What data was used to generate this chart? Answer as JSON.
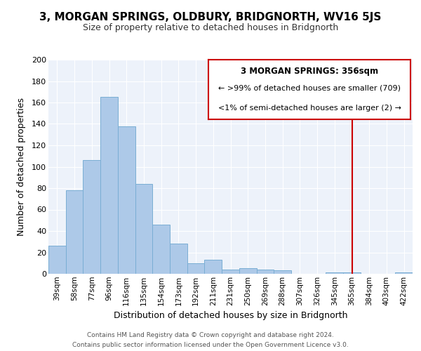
{
  "title": "3, MORGAN SPRINGS, OLDBURY, BRIDGNORTH, WV16 5JS",
  "subtitle": "Size of property relative to detached houses in Bridgnorth",
  "xlabel": "Distribution of detached houses by size in Bridgnorth",
  "ylabel": "Number of detached properties",
  "bar_labels": [
    "39sqm",
    "58sqm",
    "77sqm",
    "96sqm",
    "116sqm",
    "135sqm",
    "154sqm",
    "173sqm",
    "192sqm",
    "211sqm",
    "231sqm",
    "250sqm",
    "269sqm",
    "288sqm",
    "307sqm",
    "326sqm",
    "345sqm",
    "365sqm",
    "384sqm",
    "403sqm",
    "422sqm"
  ],
  "bar_values": [
    26,
    78,
    106,
    165,
    138,
    84,
    46,
    28,
    10,
    13,
    4,
    5,
    4,
    3,
    0,
    0,
    1,
    1,
    0,
    0,
    1
  ],
  "bar_color": "#adc9e8",
  "bar_edge_color": "#7aaed4",
  "vline_x_index": 17,
  "vline_color": "#cc0000",
  "legend_title": "3 MORGAN SPRINGS: 356sqm",
  "legend_line1": "← >99% of detached houses are smaller (709)",
  "legend_line2": "<1% of semi-detached houses are larger (2) →",
  "legend_box_color": "#cc0000",
  "ylim": [
    0,
    200
  ],
  "yticks": [
    0,
    20,
    40,
    60,
    80,
    100,
    120,
    140,
    160,
    180,
    200
  ],
  "footer1": "Contains HM Land Registry data © Crown copyright and database right 2024.",
  "footer2": "Contains public sector information licensed under the Open Government Licence v3.0.",
  "background_color": "#ffffff",
  "plot_bg_color": "#edf2fa"
}
